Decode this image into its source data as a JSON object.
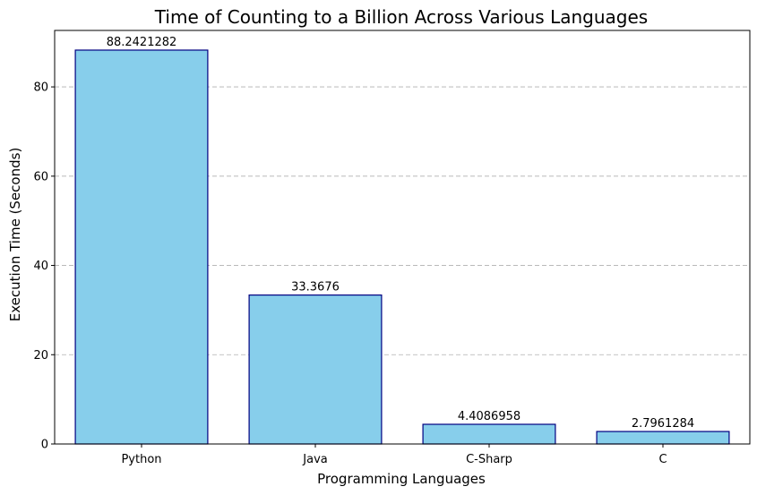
{
  "chart_data": {
    "type": "bar",
    "title": "Time of Counting to a Billion Across Various Languages",
    "xlabel": "Programming Languages",
    "ylabel": "Execution Time (Seconds)",
    "categories": [
      "Python",
      "Java",
      "C-Sharp",
      "C"
    ],
    "values": [
      88.2421282,
      33.3676,
      4.4086958,
      2.7961284
    ],
    "data_labels": [
      "88.2421282",
      "33.3676",
      "4.4086958",
      "2.7961284"
    ],
    "ylim": [
      0,
      92.65
    ],
    "yticks": [
      0,
      20,
      40,
      60,
      80
    ],
    "grid": "y-dashed",
    "colors": {
      "bar_fill": "#87ceeb",
      "bar_edge": "#000080"
    }
  }
}
